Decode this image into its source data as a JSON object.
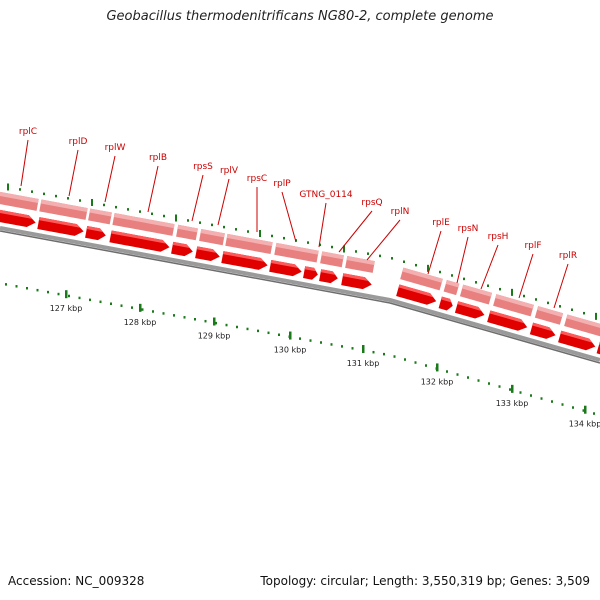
{
  "title": "Geobacillus thermodenitrificans NG80-2, complete genome",
  "footer": {
    "accession": "Accession: NC_009328",
    "summary": "Topology: circular; Length: 3,550,319 bp; Genes: 3,509"
  },
  "colors": {
    "gene_strip": "#e88080",
    "gene_arrow": "#e00000",
    "label": "#cc0000",
    "backbone": "#808080",
    "tick": "#1a7a1a"
  },
  "genes": [
    {
      "label": "rplC"
    },
    {
      "label": "rplD"
    },
    {
      "label": "rplW"
    },
    {
      "label": "rplB"
    },
    {
      "label": "rpsS"
    },
    {
      "label": "rplV"
    },
    {
      "label": "rpsC"
    },
    {
      "label": "rplP"
    },
    {
      "label": "GTNG_0114"
    },
    {
      "label": "rpsQ"
    },
    {
      "label": "rplN"
    },
    {
      "label": "rplE"
    },
    {
      "label": "rpsN"
    },
    {
      "label": "rpsH"
    },
    {
      "label": "rplF"
    },
    {
      "label": "rplR"
    }
  ],
  "scale_ticks": [
    "127 kbp",
    "128 kbp",
    "129 kbp",
    "130 kbp",
    "131 kbp",
    "132 kbp",
    "133 kbp",
    "134 kbp"
  ]
}
